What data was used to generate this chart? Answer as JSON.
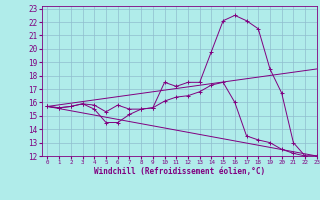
{
  "xlabel": "Windchill (Refroidissement éolien,°C)",
  "ylabel": "",
  "xlim": [
    -0.5,
    23
  ],
  "ylim": [
    12,
    23.2
  ],
  "yticks": [
    12,
    13,
    14,
    15,
    16,
    17,
    18,
    19,
    20,
    21,
    22,
    23
  ],
  "xticks": [
    0,
    1,
    2,
    3,
    4,
    5,
    6,
    7,
    8,
    9,
    10,
    11,
    12,
    13,
    14,
    15,
    16,
    17,
    18,
    19,
    20,
    21,
    22,
    23
  ],
  "background_color": "#b0ecea",
  "grid_color": "#90bece",
  "line_color": "#800080",
  "lines": [
    {
      "x": [
        0,
        1,
        2,
        3,
        4,
        5,
        6,
        7,
        8,
        9,
        10,
        11,
        12,
        13,
        14,
        15,
        16,
        17,
        18,
        19,
        20,
        21,
        22,
        23
      ],
      "y": [
        15.7,
        15.6,
        15.7,
        15.9,
        15.8,
        15.3,
        15.8,
        15.5,
        15.5,
        15.6,
        17.5,
        17.2,
        17.5,
        17.5,
        19.8,
        22.1,
        22.5,
        22.1,
        21.5,
        18.5,
        16.7,
        13.0,
        12.0,
        12.0
      ],
      "marker": true
    },
    {
      "x": [
        0,
        1,
        2,
        3,
        4,
        5,
        6,
        7,
        8,
        9,
        10,
        11,
        12,
        13,
        14,
        15,
        16,
        17,
        18,
        19,
        20,
        21,
        22,
        23
      ],
      "y": [
        15.7,
        15.6,
        15.7,
        15.9,
        15.5,
        14.5,
        14.5,
        15.1,
        15.5,
        15.6,
        16.1,
        16.4,
        16.5,
        16.8,
        17.3,
        17.5,
        16.0,
        13.5,
        13.2,
        13.0,
        12.5,
        12.2,
        12.0,
        12.0
      ],
      "marker": true
    },
    {
      "x": [
        0,
        23
      ],
      "y": [
        15.7,
        18.5
      ],
      "marker": false
    },
    {
      "x": [
        0,
        23
      ],
      "y": [
        15.7,
        12.0
      ],
      "marker": false
    }
  ]
}
